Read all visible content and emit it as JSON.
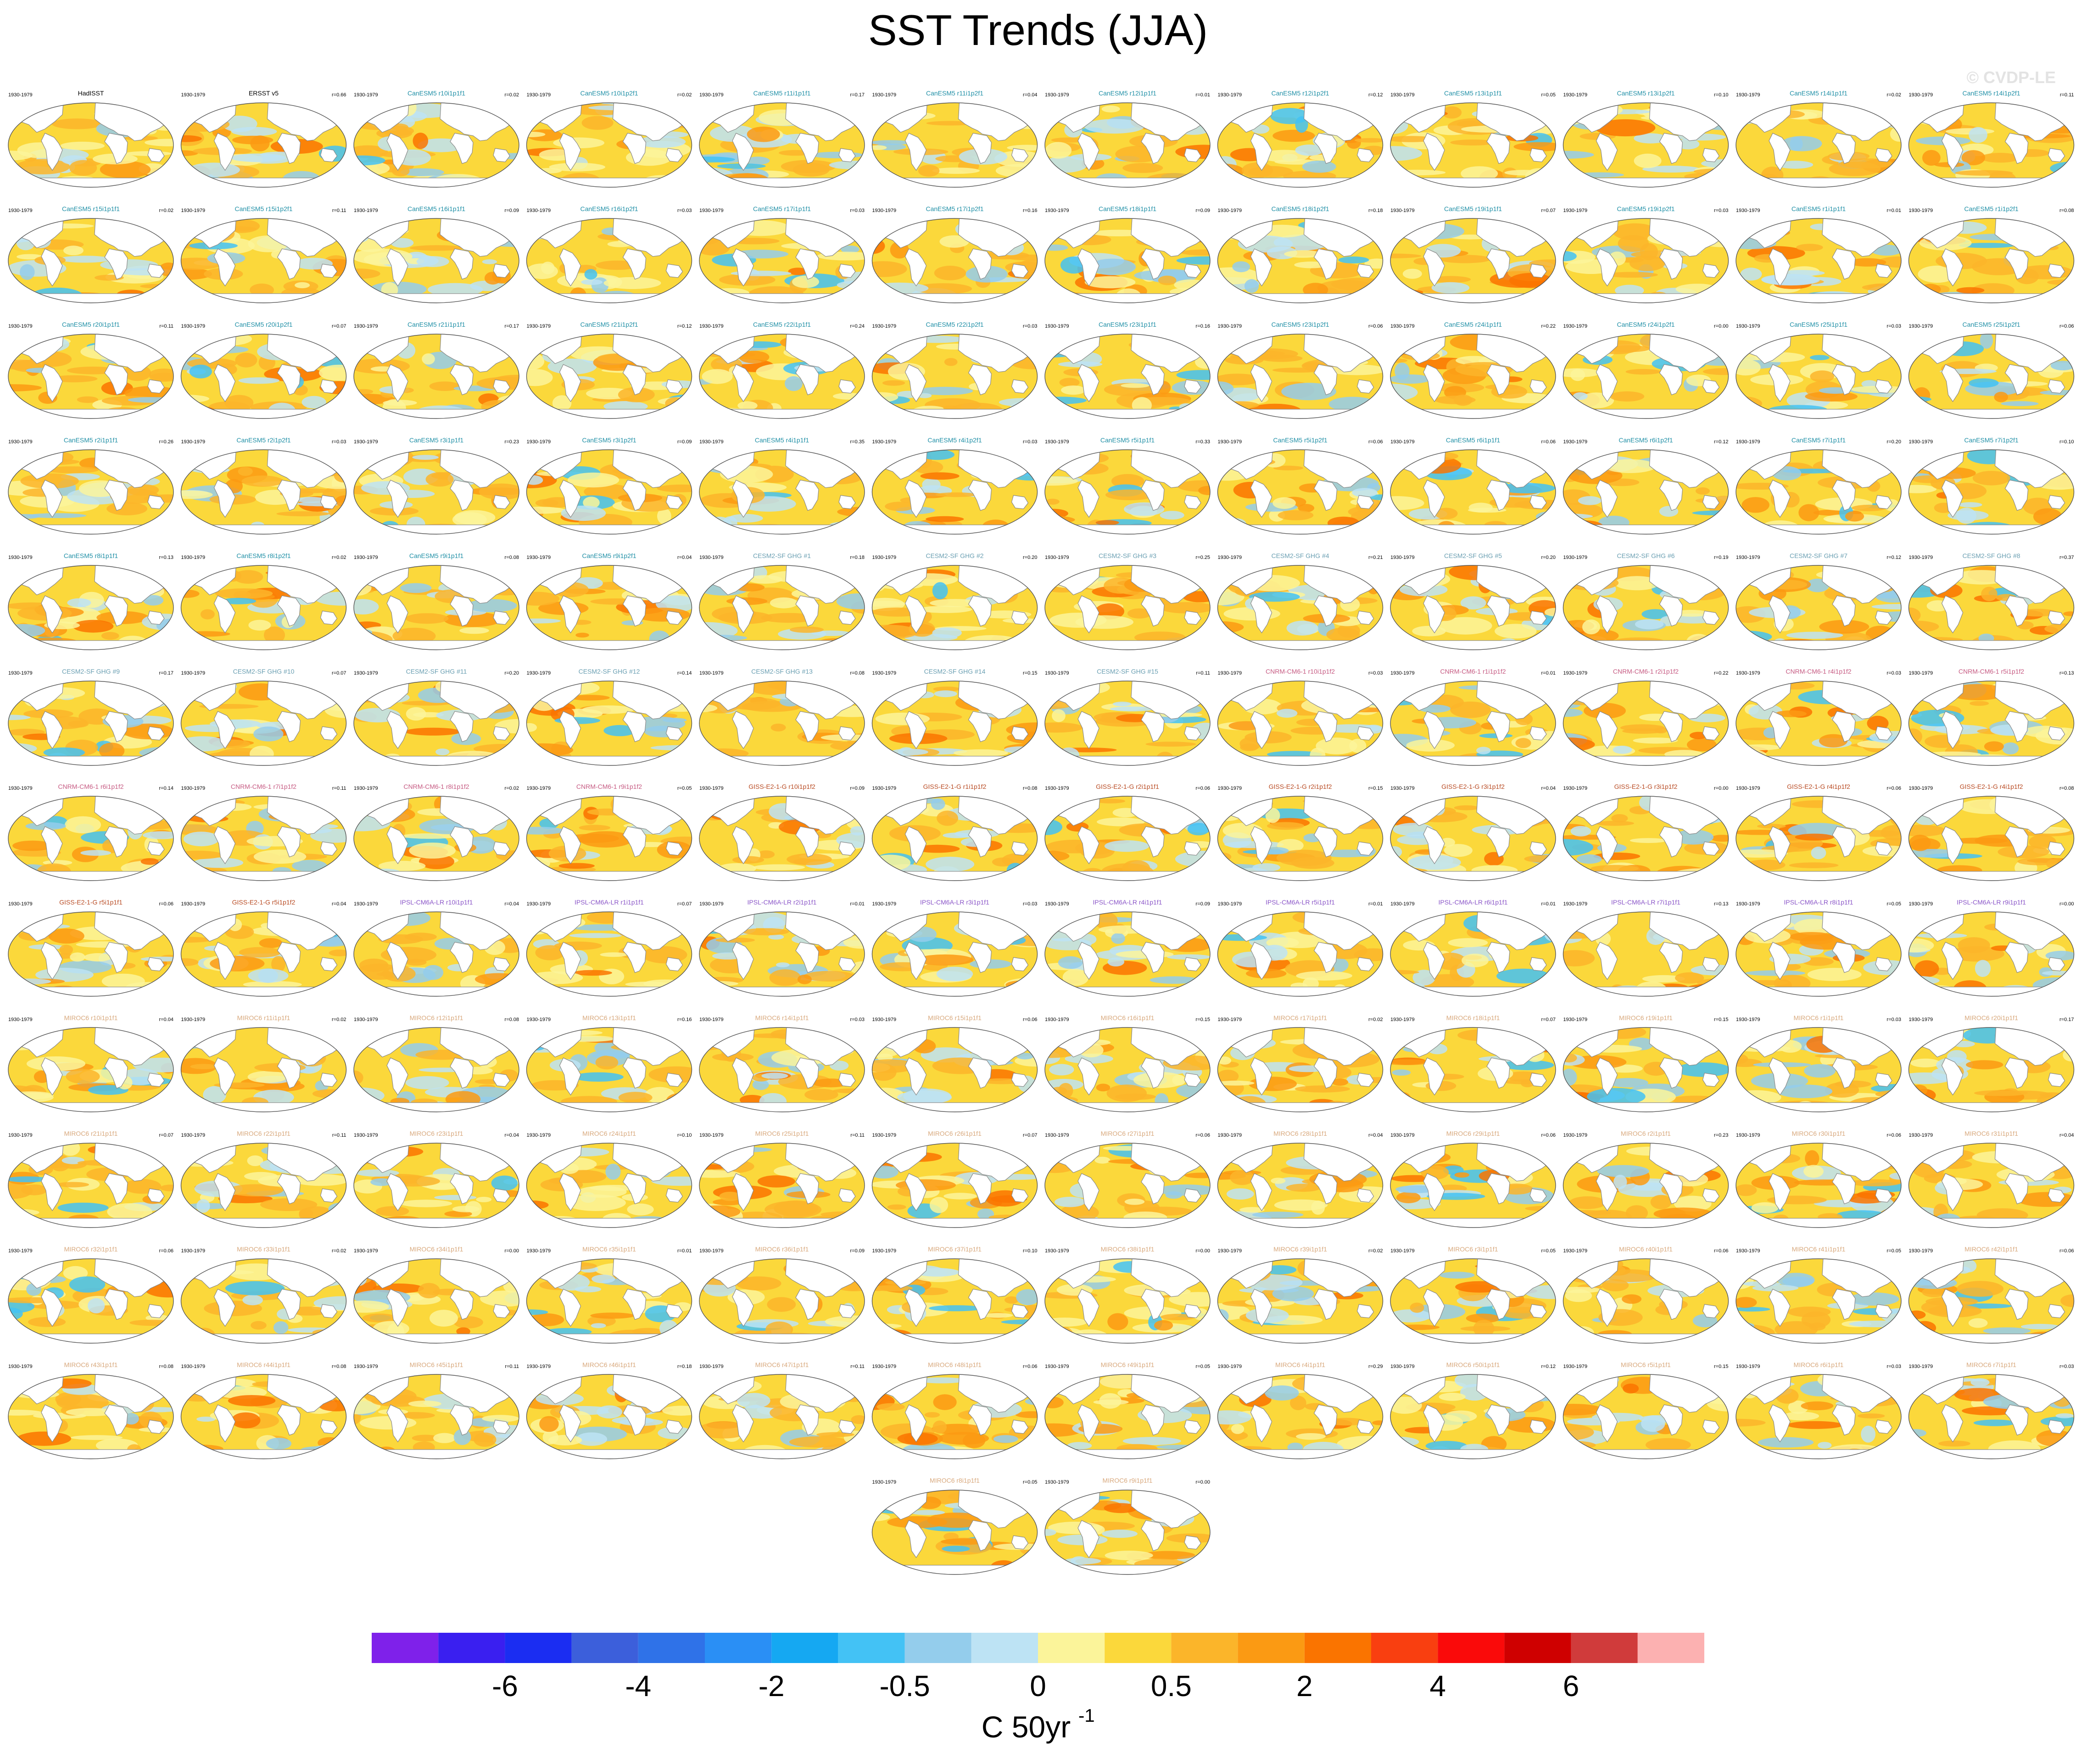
{
  "title": "SST Trends (JJA)",
  "watermark": "© CVDP-LE",
  "panel_period": "1930-1979",
  "colors": {
    "ocean_base": "#fbd83b",
    "land": "#ffffff",
    "coast": "#888888",
    "teal_title": "#1f8fa6",
    "cesm_title": "#6a9fb2",
    "cnrm_title": "#c65a82",
    "giss_title": "#b84a22",
    "ipsl_title": "#8a55c8",
    "miroc_title": "#d8a87c"
  },
  "chart_data": {
    "type": "heatmap",
    "title": "SST Trends (JJA)",
    "colorbar": {
      "unit_label": "C 50yr",
      "unit_exponent": "-1",
      "tick_labels": [
        "-6",
        "-4",
        "-2",
        "-0.5",
        "0",
        "0.5",
        "2",
        "4",
        "6"
      ],
      "colors": [
        "#7f21ea",
        "#3a1ff0",
        "#1b2df2",
        "#3c5fdb",
        "#2f72e8",
        "#2a8ff5",
        "#15a8f2",
        "#43c2f5",
        "#94cdec",
        "#bde3f4",
        "#fbf49a",
        "#fbd83b",
        "#fbb52a",
        "#fb9a13",
        "#fa7400",
        "#f93f10",
        "#fa0a0a",
        "#cf0000",
        "#d03b3b",
        "#fcb1b1"
      ]
    },
    "panels": [
      {
        "title": "HadISST",
        "r": "",
        "color": "black"
      },
      {
        "title": "ERSST v5",
        "r": "r=0.66",
        "color": "black"
      },
      {
        "title": "CanESM5 r10i1p1f1",
        "r": "r=0.02",
        "color": "teal"
      },
      {
        "title": "CanESM5 r10i1p2f1",
        "r": "r=0.02",
        "color": "teal"
      },
      {
        "title": "CanESM5 r11i1p1f1",
        "r": "r=0.17",
        "color": "teal"
      },
      {
        "title": "CanESM5 r11i1p2f1",
        "r": "r=0.04",
        "color": "teal"
      },
      {
        "title": "CanESM5 r12i1p1f1",
        "r": "r=0.01",
        "color": "teal"
      },
      {
        "title": "CanESM5 r12i1p2f1",
        "r": "r=0.12",
        "color": "teal"
      },
      {
        "title": "CanESM5 r13i1p1f1",
        "r": "r=0.05",
        "color": "teal"
      },
      {
        "title": "CanESM5 r13i1p2f1",
        "r": "r=0.10",
        "color": "teal"
      },
      {
        "title": "CanESM5 r14i1p1f1",
        "r": "r=0.02",
        "color": "teal"
      },
      {
        "title": "CanESM5 r14i1p2f1",
        "r": "r=0.11",
        "color": "teal"
      },
      {
        "title": "CanESM5 r15i1p1f1",
        "r": "r=0.02",
        "color": "teal"
      },
      {
        "title": "CanESM5 r15i1p2f1",
        "r": "r=0.11",
        "color": "teal"
      },
      {
        "title": "CanESM5 r16i1p1f1",
        "r": "r=0.09",
        "color": "teal"
      },
      {
        "title": "CanESM5 r16i1p2f1",
        "r": "r=0.03",
        "color": "teal"
      },
      {
        "title": "CanESM5 r17i1p1f1",
        "r": "r=0.03",
        "color": "teal"
      },
      {
        "title": "CanESM5 r17i1p2f1",
        "r": "r=0.16",
        "color": "teal"
      },
      {
        "title": "CanESM5 r18i1p1f1",
        "r": "r=0.09",
        "color": "teal"
      },
      {
        "title": "CanESM5 r18i1p2f1",
        "r": "r=0.18",
        "color": "teal"
      },
      {
        "title": "CanESM5 r19i1p1f1",
        "r": "r=0.07",
        "color": "teal"
      },
      {
        "title": "CanESM5 r19i1p2f1",
        "r": "r=0.03",
        "color": "teal"
      },
      {
        "title": "CanESM5 r1i1p1f1",
        "r": "r=0.01",
        "color": "teal"
      },
      {
        "title": "CanESM5 r1i1p2f1",
        "r": "r=0.08",
        "color": "teal"
      },
      {
        "title": "CanESM5 r20i1p1f1",
        "r": "r=0.11",
        "color": "teal"
      },
      {
        "title": "CanESM5 r20i1p2f1",
        "r": "r=0.07",
        "color": "teal"
      },
      {
        "title": "CanESM5 r21i1p1f1",
        "r": "r=0.17",
        "color": "teal"
      },
      {
        "title": "CanESM5 r21i1p2f1",
        "r": "r=0.12",
        "color": "teal"
      },
      {
        "title": "CanESM5 r22i1p1f1",
        "r": "r=0.24",
        "color": "teal"
      },
      {
        "title": "CanESM5 r22i1p2f1",
        "r": "r=0.03",
        "color": "teal"
      },
      {
        "title": "CanESM5 r23i1p1f1",
        "r": "r=0.16",
        "color": "teal"
      },
      {
        "title": "CanESM5 r23i1p2f1",
        "r": "r=0.06",
        "color": "teal"
      },
      {
        "title": "CanESM5 r24i1p1f1",
        "r": "r=0.22",
        "color": "teal"
      },
      {
        "title": "CanESM5 r24i1p2f1",
        "r": "r=0.00",
        "color": "teal"
      },
      {
        "title": "CanESM5 r25i1p1f1",
        "r": "r=0.03",
        "color": "teal"
      },
      {
        "title": "CanESM5 r25i1p2f1",
        "r": "r=0.06",
        "color": "teal"
      },
      {
        "title": "CanESM5 r2i1p1f1",
        "r": "r=0.26",
        "color": "teal"
      },
      {
        "title": "CanESM5 r2i1p2f1",
        "r": "r=0.03",
        "color": "teal"
      },
      {
        "title": "CanESM5 r3i1p1f1",
        "r": "r=0.23",
        "color": "teal"
      },
      {
        "title": "CanESM5 r3i1p2f1",
        "r": "r=0.09",
        "color": "teal"
      },
      {
        "title": "CanESM5 r4i1p1f1",
        "r": "r=0.35",
        "color": "teal"
      },
      {
        "title": "CanESM5 r4i1p2f1",
        "r": "r=0.03",
        "color": "teal"
      },
      {
        "title": "CanESM5 r5i1p1f1",
        "r": "r=0.33",
        "color": "teal"
      },
      {
        "title": "CanESM5 r5i1p2f1",
        "r": "r=0.06",
        "color": "teal"
      },
      {
        "title": "CanESM5 r6i1p1f1",
        "r": "r=0.06",
        "color": "teal"
      },
      {
        "title": "CanESM5 r6i1p2f1",
        "r": "r=0.12",
        "color": "teal"
      },
      {
        "title": "CanESM5 r7i1p1f1",
        "r": "r=0.20",
        "color": "teal"
      },
      {
        "title": "CanESM5 r7i1p2f1",
        "r": "r=0.10",
        "color": "teal"
      },
      {
        "title": "CanESM5 r8i1p1f1",
        "r": "r=0.13",
        "color": "teal"
      },
      {
        "title": "CanESM5 r8i1p2f1",
        "r": "r=0.02",
        "color": "teal"
      },
      {
        "title": "CanESM5 r9i1p1f1",
        "r": "r=0.08",
        "color": "teal"
      },
      {
        "title": "CanESM5 r9i1p2f1",
        "r": "r=0.04",
        "color": "teal"
      },
      {
        "title": "CESM2-SF GHG #1",
        "r": "r=0.18",
        "color": "cesm"
      },
      {
        "title": "CESM2-SF GHG #2",
        "r": "r=0.20",
        "color": "cesm"
      },
      {
        "title": "CESM2-SF GHG #3",
        "r": "r=0.25",
        "color": "cesm"
      },
      {
        "title": "CESM2-SF GHG #4",
        "r": "r=0.21",
        "color": "cesm"
      },
      {
        "title": "CESM2-SF GHG #5",
        "r": "r=0.20",
        "color": "cesm"
      },
      {
        "title": "CESM2-SF GHG #6",
        "r": "r=0.19",
        "color": "cesm"
      },
      {
        "title": "CESM2-SF GHG #7",
        "r": "r=0.12",
        "color": "cesm"
      },
      {
        "title": "CESM2-SF GHG #8",
        "r": "r=0.37",
        "color": "cesm"
      },
      {
        "title": "CESM2-SF GHG #9",
        "r": "r=0.17",
        "color": "cesm"
      },
      {
        "title": "CESM2-SF GHG #10",
        "r": "r=0.07",
        "color": "cesm"
      },
      {
        "title": "CESM2-SF GHG #11",
        "r": "r=0.20",
        "color": "cesm"
      },
      {
        "title": "CESM2-SF GHG #12",
        "r": "r=0.14",
        "color": "cesm"
      },
      {
        "title": "CESM2-SF GHG #13",
        "r": "r=0.08",
        "color": "cesm"
      },
      {
        "title": "CESM2-SF GHG #14",
        "r": "r=0.15",
        "color": "cesm"
      },
      {
        "title": "CESM2-SF GHG #15",
        "r": "r=0.11",
        "color": "cesm"
      },
      {
        "title": "CNRM-CM6-1 r10i1p1f2",
        "r": "r=0.03",
        "color": "cnrm"
      },
      {
        "title": "CNRM-CM6-1 r1i1p1f2",
        "r": "r=0.01",
        "color": "cnrm"
      },
      {
        "title": "CNRM-CM6-1 r2i1p1f2",
        "r": "r=0.22",
        "color": "cnrm"
      },
      {
        "title": "CNRM-CM6-1 r4i1p1f2",
        "r": "r=0.03",
        "color": "cnrm"
      },
      {
        "title": "CNRM-CM6-1 r5i1p1f2",
        "r": "r=0.13",
        "color": "cnrm"
      },
      {
        "title": "CNRM-CM6-1 r6i1p1f2",
        "r": "r=0.14",
        "color": "cnrm"
      },
      {
        "title": "CNRM-CM6-1 r7i1p1f2",
        "r": "r=0.11",
        "color": "cnrm"
      },
      {
        "title": "CNRM-CM6-1 r8i1p1f2",
        "r": "r=0.02",
        "color": "cnrm"
      },
      {
        "title": "CNRM-CM6-1 r9i1p1f2",
        "r": "r=0.05",
        "color": "cnrm"
      },
      {
        "title": "GISS-E2-1-G r10i1p1f2",
        "r": "r=0.09",
        "color": "giss"
      },
      {
        "title": "GISS-E2-1-G r1i1p1f2",
        "r": "r=0.08",
        "color": "giss"
      },
      {
        "title": "GISS-E2-1-G r2i1p1f1",
        "r": "r=0.06",
        "color": "giss"
      },
      {
        "title": "GISS-E2-1-G r2i1p1f2",
        "r": "r=0.15",
        "color": "giss"
      },
      {
        "title": "GISS-E2-1-G r3i1p1f2",
        "r": "r=0.04",
        "color": "giss"
      },
      {
        "title": "GISS-E2-1-G r3i1p1f2",
        "r": "r=0.00",
        "color": "giss"
      },
      {
        "title": "GISS-E2-1-G r4i1p1f2",
        "r": "r=0.06",
        "color": "giss"
      },
      {
        "title": "GISS-E2-1-G r4i1p1f2",
        "r": "r=0.08",
        "color": "giss"
      },
      {
        "title": "GISS-E2-1-G r5i1p1f1",
        "r": "r=0.06",
        "color": "giss"
      },
      {
        "title": "GISS-E2-1-G r5i1p1f2",
        "r": "r=0.04",
        "color": "giss"
      },
      {
        "title": "IPSL-CM6A-LR r10i1p1f1",
        "r": "r=0.04",
        "color": "ipsl"
      },
      {
        "title": "IPSL-CM6A-LR r1i1p1f1",
        "r": "r=0.07",
        "color": "ipsl"
      },
      {
        "title": "IPSL-CM6A-LR r2i1p1f1",
        "r": "r=0.01",
        "color": "ipsl"
      },
      {
        "title": "IPSL-CM6A-LR r3i1p1f1",
        "r": "r=0.03",
        "color": "ipsl"
      },
      {
        "title": "IPSL-CM6A-LR r4i1p1f1",
        "r": "r=0.09",
        "color": "ipsl"
      },
      {
        "title": "IPSL-CM6A-LR r5i1p1f1",
        "r": "r=0.01",
        "color": "ipsl"
      },
      {
        "title": "IPSL-CM6A-LR r6i1p1f1",
        "r": "r=0.01",
        "color": "ipsl"
      },
      {
        "title": "IPSL-CM6A-LR r7i1p1f1",
        "r": "r=0.13",
        "color": "ipsl"
      },
      {
        "title": "IPSL-CM6A-LR r8i1p1f1",
        "r": "r=0.05",
        "color": "ipsl"
      },
      {
        "title": "IPSL-CM6A-LR r9i1p1f1",
        "r": "r=0.00",
        "color": "ipsl"
      },
      {
        "title": "MIROC6 r10i1p1f1",
        "r": "r=0.04",
        "color": "miroc"
      },
      {
        "title": "MIROC6 r11i1p1f1",
        "r": "r=0.02",
        "color": "miroc"
      },
      {
        "title": "MIROC6 r12i1p1f1",
        "r": "r=0.08",
        "color": "miroc"
      },
      {
        "title": "MIROC6 r13i1p1f1",
        "r": "r=0.16",
        "color": "miroc"
      },
      {
        "title": "MIROC6 r14i1p1f1",
        "r": "r=0.03",
        "color": "miroc"
      },
      {
        "title": "MIROC6 r15i1p1f1",
        "r": "r=0.06",
        "color": "miroc"
      },
      {
        "title": "MIROC6 r16i1p1f1",
        "r": "r=0.15",
        "color": "miroc"
      },
      {
        "title": "MIROC6 r17i1p1f1",
        "r": "r=0.02",
        "color": "miroc"
      },
      {
        "title": "MIROC6 r18i1p1f1",
        "r": "r=0.07",
        "color": "miroc"
      },
      {
        "title": "MIROC6 r19i1p1f1",
        "r": "r=0.15",
        "color": "miroc"
      },
      {
        "title": "MIROC6 r1i1p1f1",
        "r": "r=0.03",
        "color": "miroc"
      },
      {
        "title": "MIROC6 r20i1p1f1",
        "r": "r=0.17",
        "color": "miroc"
      },
      {
        "title": "MIROC6 r21i1p1f1",
        "r": "r=0.07",
        "color": "miroc"
      },
      {
        "title": "MIROC6 r22i1p1f1",
        "r": "r=0.11",
        "color": "miroc"
      },
      {
        "title": "MIROC6 r23i1p1f1",
        "r": "r=0.04",
        "color": "miroc"
      },
      {
        "title": "MIROC6 r24i1p1f1",
        "r": "r=0.10",
        "color": "miroc"
      },
      {
        "title": "MIROC6 r25i1p1f1",
        "r": "r=0.11",
        "color": "miroc"
      },
      {
        "title": "MIROC6 r26i1p1f1",
        "r": "r=0.07",
        "color": "miroc"
      },
      {
        "title": "MIROC6 r27i1p1f1",
        "r": "r=0.06",
        "color": "miroc"
      },
      {
        "title": "MIROC6 r28i1p1f1",
        "r": "r=0.04",
        "color": "miroc"
      },
      {
        "title": "MIROC6 r29i1p1f1",
        "r": "r=0.06",
        "color": "miroc"
      },
      {
        "title": "MIROC6 r2i1p1f1",
        "r": "r=0.23",
        "color": "miroc"
      },
      {
        "title": "MIROC6 r30i1p1f1",
        "r": "r=0.06",
        "color": "miroc"
      },
      {
        "title": "MIROC6 r31i1p1f1",
        "r": "r=0.04",
        "color": "miroc"
      },
      {
        "title": "MIROC6 r32i1p1f1",
        "r": "r=0.06",
        "color": "miroc"
      },
      {
        "title": "MIROC6 r33i1p1f1",
        "r": "r=0.02",
        "color": "miroc"
      },
      {
        "title": "MIROC6 r34i1p1f1",
        "r": "r=0.00",
        "color": "miroc"
      },
      {
        "title": "MIROC6 r35i1p1f1",
        "r": "r=0.01",
        "color": "miroc"
      },
      {
        "title": "MIROC6 r36i1p1f1",
        "r": "r=0.09",
        "color": "miroc"
      },
      {
        "title": "MIROC6 r37i1p1f1",
        "r": "r=0.10",
        "color": "miroc"
      },
      {
        "title": "MIROC6 r38i1p1f1",
        "r": "r=0.00",
        "color": "miroc"
      },
      {
        "title": "MIROC6 r39i1p1f1",
        "r": "r=0.02",
        "color": "miroc"
      },
      {
        "title": "MIROC6 r3i1p1f1",
        "r": "r=0.05",
        "color": "miroc"
      },
      {
        "title": "MIROC6 r40i1p1f1",
        "r": "r=0.06",
        "color": "miroc"
      },
      {
        "title": "MIROC6 r41i1p1f1",
        "r": "r=0.05",
        "color": "miroc"
      },
      {
        "title": "MIROC6 r42i1p1f1",
        "r": "r=0.06",
        "color": "miroc"
      },
      {
        "title": "MIROC6 r43i1p1f1",
        "r": "r=0.08",
        "color": "miroc"
      },
      {
        "title": "MIROC6 r44i1p1f1",
        "r": "r=0.08",
        "color": "miroc"
      },
      {
        "title": "MIROC6 r45i1p1f1",
        "r": "r=0.11",
        "color": "miroc"
      },
      {
        "title": "MIROC6 r46i1p1f1",
        "r": "r=0.18",
        "color": "miroc"
      },
      {
        "title": "MIROC6 r47i1p1f1",
        "r": "r=0.11",
        "color": "miroc"
      },
      {
        "title": "MIROC6 r48i1p1f1",
        "r": "r=0.06",
        "color": "miroc"
      },
      {
        "title": "MIROC6 r49i1p1f1",
        "r": "r=0.05",
        "color": "miroc"
      },
      {
        "title": "MIROC6 r4i1p1f1",
        "r": "r=0.29",
        "color": "miroc"
      },
      {
        "title": "MIROC6 r50i1p1f1",
        "r": "r=0.12",
        "color": "miroc"
      },
      {
        "title": "MIROC6 r5i1p1f1",
        "r": "r=0.15",
        "color": "miroc"
      },
      {
        "title": "MIROC6 r6i1p1f1",
        "r": "r=0.03",
        "color": "miroc"
      },
      {
        "title": "MIROC6 r7i1p1f1",
        "r": "r=0.03",
        "color": "miroc"
      },
      {
        "title": "MIROC6 r8i1p1f1",
        "r": "r=0.05",
        "color": "miroc"
      },
      {
        "title": "MIROC6 r9i1p1f1",
        "r": "r=0.00",
        "color": "miroc"
      }
    ]
  }
}
